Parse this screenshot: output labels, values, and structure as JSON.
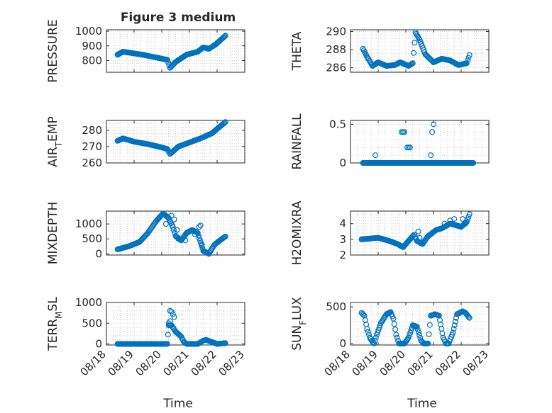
{
  "figure": {
    "title": "Figure 3 medium",
    "xlabel": "Time"
  },
  "chart_data": [
    {
      "type": "scatter",
      "ylabel": "PRESSURE",
      "ylim": [
        720,
        1010
      ],
      "yticks": [
        800,
        900,
        1000
      ],
      "yticklabels": [
        "800",
        "900",
        "1000"
      ],
      "xlim": [
        0,
        5
      ],
      "xticks": [
        0,
        1,
        2,
        3,
        4,
        5
      ],
      "xticklabels": [
        "08/18",
        "08/19",
        "08/20",
        "08/21",
        "08/22",
        "08/23"
      ],
      "knots": [
        [
          0.4,
          840
        ],
        [
          0.6,
          860
        ],
        [
          1.3,
          840
        ],
        [
          2.2,
          805
        ],
        [
          2.3,
          750
        ],
        [
          2.5,
          790
        ],
        [
          2.9,
          840
        ],
        [
          3.3,
          860
        ],
        [
          3.5,
          890
        ],
        [
          3.7,
          880
        ],
        [
          3.95,
          910
        ],
        [
          4.3,
          970
        ]
      ],
      "grid": true,
      "legend": "none"
    },
    {
      "type": "scatter",
      "ylabel": "THETA",
      "ylim": [
        285.5,
        290.2
      ],
      "yticks": [
        286,
        288,
        290
      ],
      "yticklabels": [
        "286",
        "288",
        "290"
      ],
      "xlim": [
        0,
        5
      ],
      "xticks": [
        0,
        1,
        2,
        3,
        4,
        5
      ],
      "xticklabels": [
        "08/18",
        "08/19",
        "08/20",
        "08/21",
        "08/22",
        "08/23"
      ],
      "knots": [
        [
          0.45,
          288.1
        ],
        [
          0.6,
          287.2
        ],
        [
          0.8,
          286.2
        ],
        [
          1.0,
          286.6
        ],
        [
          1.3,
          286.2
        ],
        [
          1.6,
          286.3
        ],
        [
          1.8,
          286.6
        ],
        [
          2.1,
          286.2
        ],
        [
          2.25,
          286.5
        ],
        [
          2.35,
          289.9
        ],
        [
          2.5,
          289.1
        ],
        [
          2.7,
          287.5
        ],
        [
          3.0,
          286.6
        ],
        [
          3.3,
          287.0
        ],
        [
          3.6,
          286.8
        ],
        [
          3.9,
          286.3
        ],
        [
          4.2,
          286.5
        ],
        [
          4.3,
          287.4
        ]
      ],
      "grid": true,
      "legend": "none"
    },
    {
      "type": "scatter",
      "ylabel": "AIR_TEMP",
      "ylim": [
        260,
        286
      ],
      "yticks": [
        260,
        270,
        280
      ],
      "yticklabels": [
        "260",
        "270",
        "280"
      ],
      "xlim": [
        0,
        5
      ],
      "xticks": [
        0,
        1,
        2,
        3,
        4,
        5
      ],
      "xticklabels": [
        "08/18",
        "08/19",
        "08/20",
        "08/21",
        "08/22",
        "08/23"
      ],
      "knots": [
        [
          0.4,
          273.5
        ],
        [
          0.6,
          275
        ],
        [
          1.0,
          273
        ],
        [
          1.5,
          271.5
        ],
        [
          2.0,
          269.5
        ],
        [
          2.2,
          268.5
        ],
        [
          2.3,
          265.5
        ],
        [
          2.6,
          270
        ],
        [
          3.0,
          272.5
        ],
        [
          3.4,
          275
        ],
        [
          3.8,
          278
        ],
        [
          4.3,
          285
        ]
      ],
      "grid": true,
      "legend": "none"
    },
    {
      "type": "scatter",
      "ylabel": "RAINFALL",
      "ylim": [
        0,
        0.55
      ],
      "yticks": [
        0,
        0.5
      ],
      "yticklabels": [
        "0",
        "0.5"
      ],
      "xlim": [
        0,
        5
      ],
      "xticks": [
        0,
        1,
        2,
        3,
        4,
        5
      ],
      "xticklabels": [
        "08/18",
        "08/19",
        "08/20",
        "08/21",
        "08/22",
        "08/23"
      ],
      "baseline_x": [
        0.45,
        4.45
      ],
      "baseline_y": 0,
      "spikes": [
        [
          0.9,
          0.1
        ],
        [
          1.85,
          0.4
        ],
        [
          1.9,
          0.4
        ],
        [
          1.95,
          0.4
        ],
        [
          2.05,
          0.2
        ],
        [
          2.1,
          0.2
        ],
        [
          2.15,
          0.2
        ],
        [
          2.9,
          0.1
        ],
        [
          2.95,
          0.4
        ],
        [
          3.0,
          0.5
        ]
      ],
      "grid": true,
      "legend": "none"
    },
    {
      "type": "scatter",
      "ylabel": "MIXDEPTH",
      "ylim": [
        -40,
        1430
      ],
      "yticks": [
        0,
        500,
        1000
      ],
      "yticklabels": [
        "0",
        "500",
        "1000"
      ],
      "xlim": [
        0,
        5
      ],
      "xticks": [
        0,
        1,
        2,
        3,
        4,
        5
      ],
      "xticklabels": [
        "08/18",
        "08/19",
        "08/20",
        "08/21",
        "08/22",
        "08/23"
      ],
      "knots": [
        [
          0.4,
          150
        ],
        [
          0.8,
          250
        ],
        [
          1.2,
          400
        ],
        [
          1.5,
          700
        ],
        [
          1.8,
          1100
        ],
        [
          2.05,
          1350
        ],
        [
          2.25,
          1200
        ],
        [
          2.4,
          900
        ],
        [
          2.5,
          600
        ],
        [
          2.7,
          450
        ],
        [
          2.9,
          700
        ],
        [
          3.1,
          800
        ],
        [
          3.3,
          700
        ],
        [
          3.5,
          100
        ],
        [
          3.7,
          0
        ],
        [
          3.9,
          300
        ],
        [
          4.1,
          450
        ],
        [
          4.3,
          580
        ]
      ],
      "scattered": [
        [
          2.15,
          1000
        ],
        [
          2.35,
          1280
        ],
        [
          2.45,
          1150
        ],
        [
          2.55,
          800
        ],
        [
          2.6,
          500
        ],
        [
          2.85,
          450
        ],
        [
          3.2,
          650
        ],
        [
          3.35,
          900
        ],
        [
          3.4,
          950
        ],
        [
          3.45,
          300
        ]
      ],
      "grid": true,
      "legend": "none"
    },
    {
      "type": "scatter",
      "ylabel": "H2OMIXRA",
      "ylim": [
        2,
        4.8
      ],
      "yticks": [
        2,
        3,
        4
      ],
      "yticklabels": [
        "2",
        "3",
        "4"
      ],
      "xlim": [
        0,
        5
      ],
      "xticks": [
        0,
        1,
        2,
        3,
        4,
        5
      ],
      "xticklabels": [
        "08/18",
        "08/19",
        "08/20",
        "08/21",
        "08/22",
        "08/23"
      ],
      "knots": [
        [
          0.4,
          3.0
        ],
        [
          1.0,
          3.1
        ],
        [
          1.4,
          2.9
        ],
        [
          1.7,
          2.7
        ],
        [
          1.9,
          2.5
        ],
        [
          2.15,
          3.0
        ],
        [
          2.3,
          3.3
        ],
        [
          2.4,
          2.9
        ],
        [
          2.6,
          2.7
        ],
        [
          2.8,
          3.2
        ],
        [
          3.1,
          3.6
        ],
        [
          3.3,
          3.7
        ],
        [
          3.6,
          4.0
        ],
        [
          3.8,
          3.9
        ],
        [
          4.0,
          3.8
        ],
        [
          4.2,
          4.1
        ],
        [
          4.3,
          4.6
        ]
      ],
      "scattered": [
        [
          2.45,
          3.5
        ],
        [
          2.5,
          3.1
        ],
        [
          3.4,
          4.0
        ],
        [
          3.6,
          4.2
        ],
        [
          3.75,
          4.3
        ],
        [
          4.05,
          4.3
        ],
        [
          4.15,
          4.0
        ]
      ],
      "grid": true,
      "legend": "none"
    },
    {
      "type": "scatter",
      "ylabel": "TERR_MSL",
      "ylim": [
        -25,
        1000
      ],
      "yticks": [
        0,
        500,
        1000
      ],
      "yticklabels": [
        "0",
        "500",
        "1000"
      ],
      "xlim": [
        0,
        5
      ],
      "xticks": [
        0,
        1,
        2,
        3,
        4,
        5
      ],
      "xticklabels": [
        "08/18",
        "08/19",
        "08/20",
        "08/21",
        "08/22",
        "08/23"
      ],
      "knots": [
        [
          0.4,
          0
        ],
        [
          2.2,
          0
        ],
        [
          2.25,
          450
        ],
        [
          2.35,
          450
        ],
        [
          2.5,
          300
        ],
        [
          2.7,
          180
        ],
        [
          2.8,
          50
        ],
        [
          2.9,
          0
        ],
        [
          3.3,
          0
        ],
        [
          3.5,
          80
        ],
        [
          3.6,
          100
        ],
        [
          3.8,
          50
        ],
        [
          4.0,
          0
        ],
        [
          4.3,
          20
        ]
      ],
      "scattered": [
        [
          2.3,
          800
        ],
        [
          2.35,
          780
        ],
        [
          2.4,
          720
        ],
        [
          2.45,
          650
        ],
        [
          2.25,
          500
        ],
        [
          2.3,
          550
        ]
      ],
      "grid": true,
      "legend": "none"
    },
    {
      "type": "scatter",
      "ylabel": "SUN_FLUX",
      "ylim": [
        -20,
        560
      ],
      "yticks": [
        0,
        500
      ],
      "yticklabels": [
        "0",
        "500"
      ],
      "xlim": [
        0,
        5
      ],
      "xticks": [
        0,
        1,
        2,
        3,
        4,
        5
      ],
      "xticklabels": [
        "08/18",
        "08/19",
        "08/20",
        "08/21",
        "08/22",
        "08/23"
      ],
      "knots": [
        [
          0.4,
          420
        ],
        [
          0.5,
          380
        ],
        [
          0.6,
          200
        ],
        [
          0.7,
          80
        ],
        [
          0.8,
          20
        ],
        [
          0.85,
          0
        ],
        [
          0.95,
          120
        ],
        [
          1.1,
          280
        ],
        [
          1.3,
          400
        ],
        [
          1.45,
          430
        ],
        [
          1.55,
          340
        ],
        [
          1.65,
          120
        ],
        [
          1.75,
          0
        ],
        [
          1.95,
          0
        ],
        [
          2.1,
          80
        ],
        [
          2.25,
          250
        ],
        [
          2.4,
          230
        ],
        [
          2.55,
          40
        ],
        [
          2.65,
          0
        ],
        [
          2.8,
          0
        ],
        [
          2.9,
          380
        ],
        [
          3.05,
          400
        ],
        [
          3.2,
          380
        ],
        [
          3.35,
          80
        ],
        [
          3.45,
          0
        ],
        [
          3.55,
          0
        ],
        [
          3.7,
          150
        ],
        [
          3.85,
          400
        ],
        [
          4.05,
          440
        ],
        [
          4.15,
          420
        ],
        [
          4.3,
          350
        ]
      ],
      "grid": true,
      "legend": "none"
    }
  ]
}
